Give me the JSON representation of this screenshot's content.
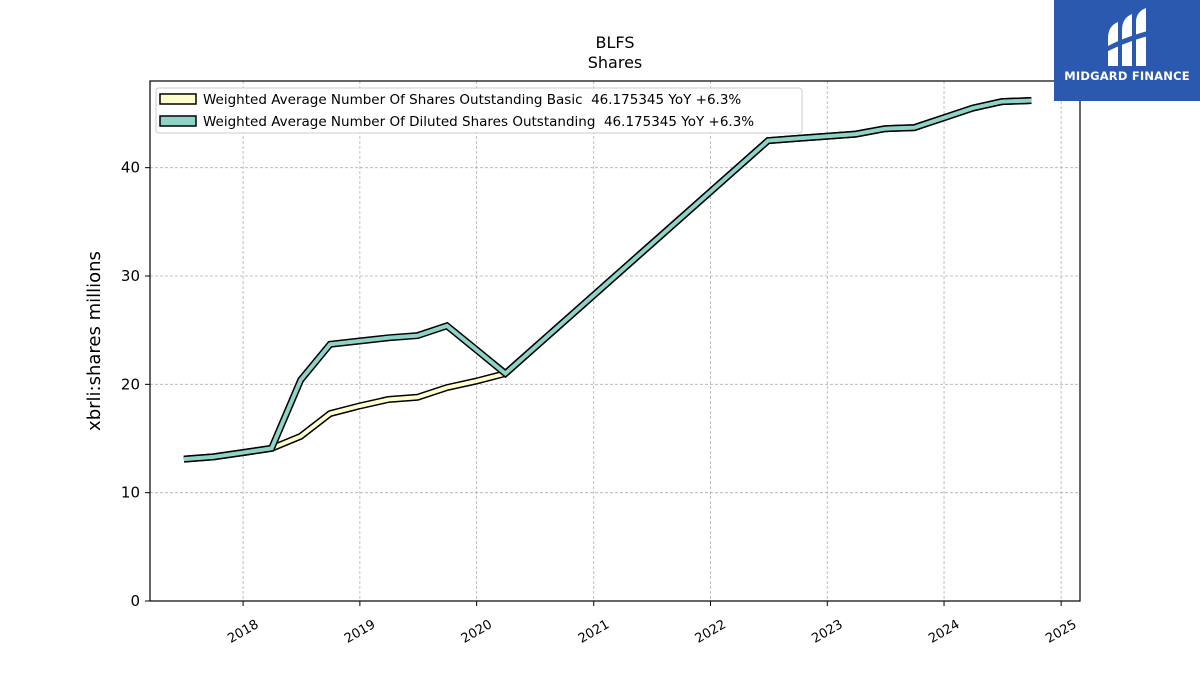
{
  "logo": {
    "text": "MIDGARD FINANCE",
    "color": "#2b59b0"
  },
  "chart_data": {
    "type": "line",
    "title": "BLFS",
    "subtitle": "Shares",
    "ylabel": "xbrli:shares millions",
    "xlabel": "",
    "xlim": [
      "2017-03-16",
      "2025-03-01"
    ],
    "ylim": [
      0,
      48
    ],
    "yticks": [
      0,
      10,
      20,
      30,
      40
    ],
    "xticks": [
      {
        "date": "2018-01-01",
        "label": "2018"
      },
      {
        "date": "2019-01-01",
        "label": "2019"
      },
      {
        "date": "2020-01-01",
        "label": "2020"
      },
      {
        "date": "2021-01-01",
        "label": "2021"
      },
      {
        "date": "2022-01-01",
        "label": "2022"
      },
      {
        "date": "2023-01-01",
        "label": "2023"
      },
      {
        "date": "2024-01-01",
        "label": "2024"
      },
      {
        "date": "2025-01-01",
        "label": "2025"
      }
    ],
    "grid": true,
    "legend_position": "upper-left",
    "series": [
      {
        "name": "Weighted Average Number Of Shares Outstanding Basic",
        "legend_label": "Weighted Average Number Of Shares Outstanding Basic  46.175345 YoY +6.3%",
        "color": "#ffffcc",
        "points": [
          [
            "2017-06-30",
            13.1
          ],
          [
            "2017-09-30",
            13.3
          ],
          [
            "2017-12-31",
            13.7
          ],
          [
            "2018-03-31",
            14.1
          ],
          [
            "2018-06-30",
            15.2
          ],
          [
            "2018-09-30",
            17.3
          ],
          [
            "2018-12-31",
            18.0
          ],
          [
            "2019-03-31",
            18.6
          ],
          [
            "2019-06-30",
            18.8
          ],
          [
            "2019-09-30",
            19.7
          ],
          [
            "2019-12-31",
            20.3
          ],
          [
            "2020-03-31",
            21.0
          ],
          [
            "2022-06-30",
            42.5
          ],
          [
            "2022-09-30",
            42.7
          ],
          [
            "2022-12-31",
            42.9
          ],
          [
            "2023-03-31",
            43.1
          ],
          [
            "2023-06-30",
            43.6
          ],
          [
            "2023-09-30",
            43.7
          ],
          [
            "2023-12-31",
            44.6
          ],
          [
            "2024-03-31",
            45.5
          ],
          [
            "2024-06-30",
            46.1
          ],
          [
            "2024-09-30",
            46.2
          ]
        ]
      },
      {
        "name": "Weighted Average Number Of Diluted Shares Outstanding",
        "legend_label": "Weighted Average Number Of Diluted Shares Outstanding  46.175345 YoY +6.3%",
        "color": "#8dd3c7",
        "points": [
          [
            "2017-06-30",
            13.1
          ],
          [
            "2017-09-30",
            13.3
          ],
          [
            "2017-12-31",
            13.7
          ],
          [
            "2018-03-31",
            14.1
          ],
          [
            "2018-06-30",
            20.4
          ],
          [
            "2018-09-30",
            23.7
          ],
          [
            "2018-12-31",
            24.0
          ],
          [
            "2019-03-31",
            24.3
          ],
          [
            "2019-06-30",
            24.5
          ],
          [
            "2019-09-30",
            25.4
          ],
          [
            "2019-12-31",
            23.2
          ],
          [
            "2020-03-31",
            21.0
          ],
          [
            "2022-06-30",
            42.5
          ],
          [
            "2022-09-30",
            42.7
          ],
          [
            "2022-12-31",
            42.9
          ],
          [
            "2023-03-31",
            43.1
          ],
          [
            "2023-06-30",
            43.6
          ],
          [
            "2023-09-30",
            43.7
          ],
          [
            "2023-12-31",
            44.6
          ],
          [
            "2024-03-31",
            45.5
          ],
          [
            "2024-06-30",
            46.1
          ],
          [
            "2024-09-30",
            46.2
          ]
        ]
      }
    ]
  }
}
